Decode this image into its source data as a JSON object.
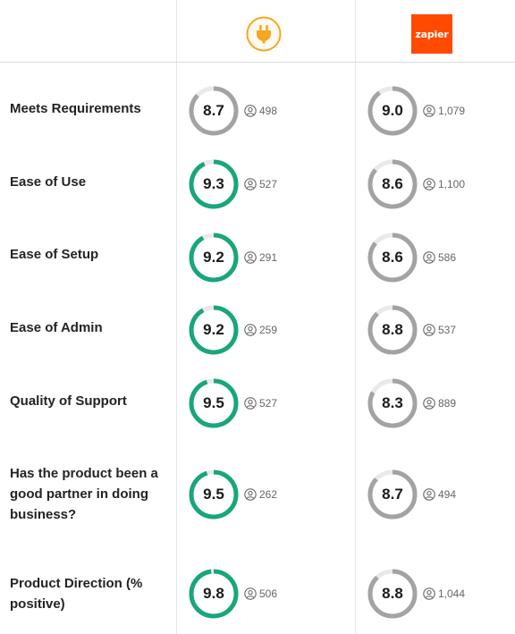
{
  "header": {
    "product_a_logo": "plug-icon",
    "product_b_logo_text": "zapier",
    "colors": {
      "product_a_accent": "#f5a623",
      "product_b_brand": "#ff4a00"
    }
  },
  "colors": {
    "high_score_ring": "#18a67c",
    "normal_score_ring": "#a3a3a3",
    "ring_track": "#e9e9e9"
  },
  "rows": [
    {
      "label": "Meets Requirements",
      "a": {
        "score": "8.7",
        "reviews": "498",
        "highlight": false
      },
      "b": {
        "score": "9.0",
        "reviews": "1,079",
        "highlight": false
      }
    },
    {
      "label": "Ease of Use",
      "a": {
        "score": "9.3",
        "reviews": "527",
        "highlight": true
      },
      "b": {
        "score": "8.6",
        "reviews": "1,100",
        "highlight": false
      }
    },
    {
      "label": "Ease of Setup",
      "a": {
        "score": "9.2",
        "reviews": "291",
        "highlight": true
      },
      "b": {
        "score": "8.6",
        "reviews": "586",
        "highlight": false
      }
    },
    {
      "label": "Ease of Admin",
      "a": {
        "score": "9.2",
        "reviews": "259",
        "highlight": true
      },
      "b": {
        "score": "8.8",
        "reviews": "537",
        "highlight": false
      }
    },
    {
      "label": "Quality of Support",
      "a": {
        "score": "9.5",
        "reviews": "527",
        "highlight": true
      },
      "b": {
        "score": "8.3",
        "reviews": "889",
        "highlight": false
      }
    },
    {
      "label": "Has the product been a good partner in doing business?",
      "a": {
        "score": "9.5",
        "reviews": "262",
        "highlight": true
      },
      "b": {
        "score": "8.7",
        "reviews": "494",
        "highlight": false
      }
    },
    {
      "label": "Product Direction (% positive)",
      "a": {
        "score": "9.8",
        "reviews": "506",
        "highlight": true
      },
      "b": {
        "score": "8.8",
        "reviews": "1,044",
        "highlight": false
      }
    }
  ]
}
